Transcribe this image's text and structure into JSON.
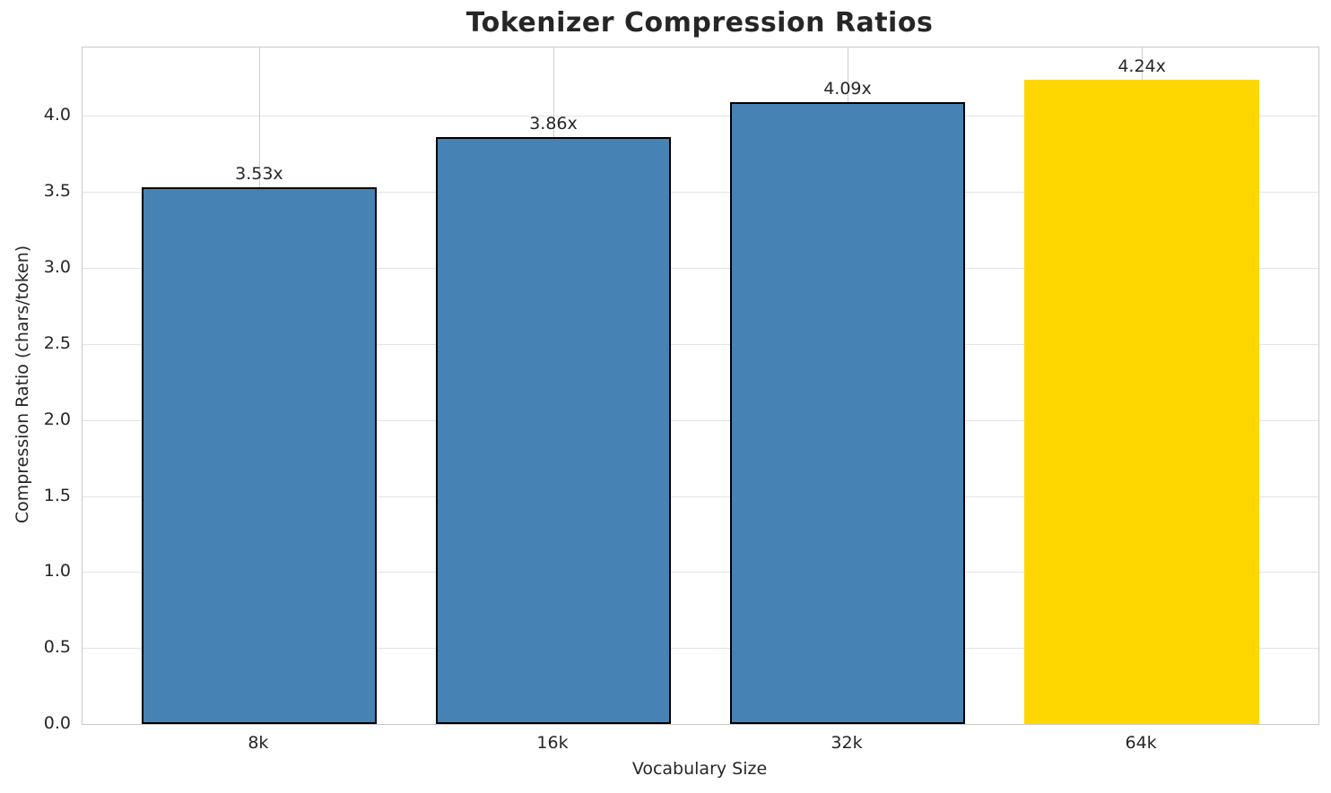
{
  "chart_data": {
    "type": "bar",
    "title": "Tokenizer Compression Ratios",
    "xlabel": "Vocabulary Size",
    "ylabel": "Compression Ratio (chars/token)",
    "categories": [
      "8k",
      "16k",
      "32k",
      "64k"
    ],
    "values": [
      3.53,
      3.86,
      4.09,
      4.24
    ],
    "bar_value_labels": [
      "3.53x",
      "3.86x",
      "4.09x",
      "4.24x"
    ],
    "ytick_labels": [
      "0.0",
      "0.5",
      "1.0",
      "1.5",
      "2.0",
      "2.5",
      "3.0",
      "3.5",
      "4.0"
    ],
    "yticks": [
      0.0,
      0.5,
      1.0,
      1.5,
      2.0,
      2.5,
      3.0,
      3.5,
      4.0
    ],
    "ylim": [
      0,
      4.45
    ],
    "xlim": [
      -0.6,
      3.6
    ],
    "bar_width_units": 0.8,
    "grid": true,
    "legend": "none",
    "highlight_index": 3,
    "colors": {
      "bar_default": "#4682B4",
      "bar_highlight": "#FFD700",
      "bar_edge": "#000000",
      "grid_horizontal": "#e3e3e3",
      "grid_vertical": "#cfcfcf",
      "spine": "#c9c9c9",
      "text": "#262626",
      "background": "#ffffff"
    }
  }
}
